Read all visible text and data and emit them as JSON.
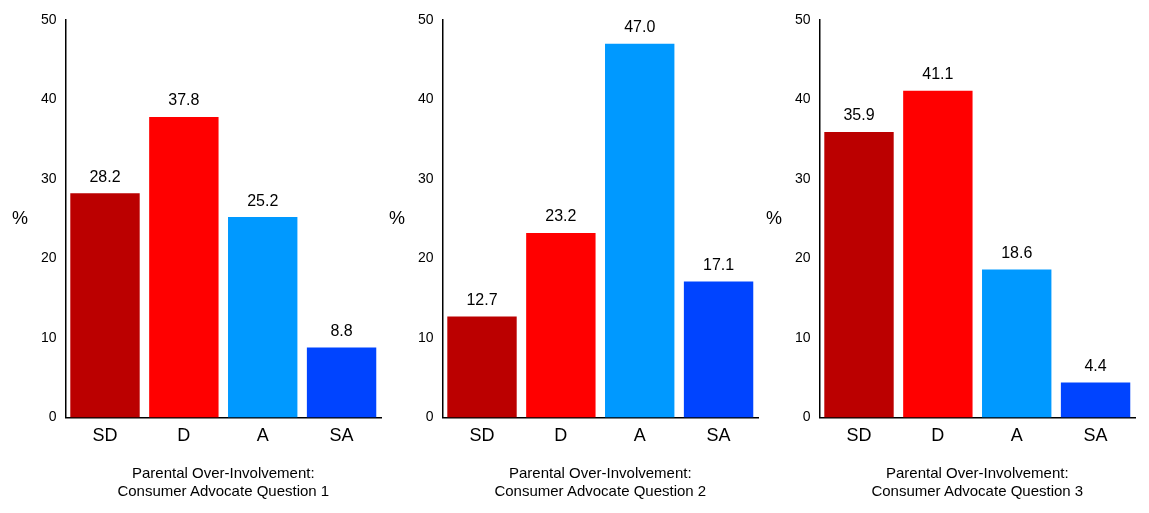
{
  "chart_data": [
    {
      "type": "bar",
      "xlabel": "Parental Over-Involvement:\nConsumer Advocate Question 1",
      "ylabel": "%",
      "categories": [
        "SD",
        "D",
        "A",
        "SA"
      ],
      "values": [
        28.2,
        37.8,
        25.2,
        8.8
      ],
      "colors": [
        "#bb0000",
        "#ff0000",
        "#0099ff",
        "#0044ff"
      ],
      "ylim": [
        0,
        50
      ],
      "yticks": [
        0,
        10,
        20,
        30,
        40,
        50
      ],
      "grid": false,
      "legend": false,
      "data_labels": true
    },
    {
      "type": "bar",
      "xlabel": "Parental Over-Involvement:\nConsumer Advocate Question 2",
      "ylabel": "%",
      "categories": [
        "SD",
        "D",
        "A",
        "SA"
      ],
      "values": [
        12.7,
        23.2,
        47.0,
        17.1
      ],
      "value_labels": [
        "12.7",
        "23.2",
        "47.0",
        "17.1"
      ],
      "colors": [
        "#bb0000",
        "#ff0000",
        "#0099ff",
        "#0044ff"
      ],
      "ylim": [
        0,
        50
      ],
      "yticks": [
        0,
        10,
        20,
        30,
        40,
        50
      ],
      "grid": false,
      "legend": false
    },
    {
      "type": "bar",
      "xlabel": "Parental Over-Involvement:\nConsumer Advocate Question 3",
      "ylabel": "%",
      "categories": [
        "SD",
        "D",
        "A",
        "SA"
      ],
      "values": [
        35.9,
        41.1,
        18.6,
        4.4
      ],
      "colors": [
        "#bb0000",
        "#ff0000",
        "#0099ff",
        "#0044ff"
      ],
      "ylim": [
        0,
        50
      ],
      "yticks": [
        0,
        10,
        20,
        30,
        40,
        50
      ],
      "grid": false,
      "legend": false,
      "data_labels": true
    }
  ]
}
